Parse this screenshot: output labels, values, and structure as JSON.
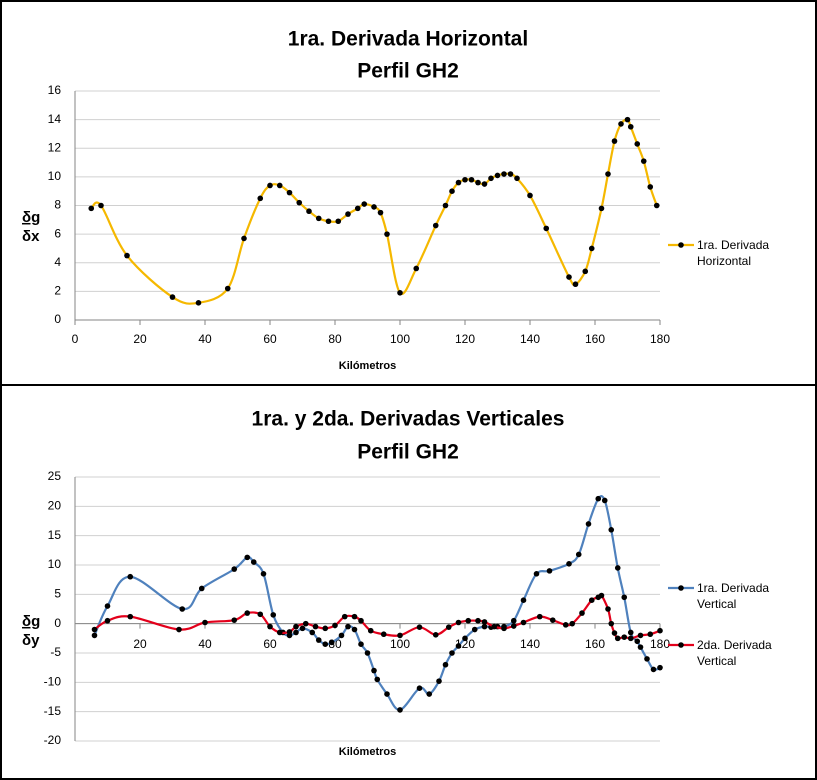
{
  "chart_data": [
    {
      "type": "line",
      "title": "1ra. Derivada Horizontal",
      "subtitle": "Perfil GH2",
      "xlabel": "Kilómetros",
      "ylabel_numerator": "δg",
      "ylabel_denominator": "δx",
      "xlim": [
        0,
        180
      ],
      "xticks": [
        0,
        20,
        40,
        60,
        80,
        100,
        120,
        140,
        160,
        180
      ],
      "ylim": [
        0,
        16
      ],
      "yticks": [
        0,
        2,
        4,
        6,
        8,
        10,
        12,
        14,
        16
      ],
      "grid": true,
      "legend": "right",
      "series": [
        {
          "name": "1ra. Derivada Horizontal",
          "color": "#f5b800",
          "x": [
            5,
            8,
            16,
            30,
            38,
            47,
            52,
            57,
            60,
            63,
            66,
            69,
            72,
            75,
            78,
            81,
            84,
            87,
            89,
            92,
            94,
            96,
            100,
            105,
            111,
            114,
            116,
            118,
            120,
            122,
            124,
            126,
            128,
            130,
            132,
            134,
            136,
            140,
            145,
            152,
            154,
            157,
            159,
            162,
            164,
            166,
            168,
            170,
            171,
            173,
            175,
            177,
            179
          ],
          "values": [
            7.8,
            8.0,
            4.5,
            1.6,
            1.2,
            2.2,
            5.7,
            8.5,
            9.4,
            9.4,
            8.9,
            8.2,
            7.6,
            7.1,
            6.9,
            6.9,
            7.4,
            7.8,
            8.1,
            7.9,
            7.5,
            6.0,
            1.9,
            3.6,
            6.6,
            8.0,
            9.0,
            9.6,
            9.8,
            9.8,
            9.6,
            9.5,
            9.9,
            10.1,
            10.2,
            10.2,
            9.9,
            8.7,
            6.4,
            3.0,
            2.5,
            3.4,
            5.0,
            7.8,
            10.2,
            12.5,
            13.7,
            14.0,
            13.5,
            12.3,
            11.1,
            9.3,
            8.0
          ]
        }
      ]
    },
    {
      "type": "line",
      "title": "1ra. y 2da. Derivadas Verticales",
      "subtitle": "Perfil GH2",
      "xlabel": "Kilómetros",
      "ylabel_numerator": "δg",
      "ylabel_denominator": "δy",
      "xlim": [
        0,
        180
      ],
      "xticks": [
        20,
        40,
        60,
        80,
        100,
        120,
        140,
        160,
        180
      ],
      "ylim": [
        -20,
        25
      ],
      "yticks": [
        -20,
        -15,
        -10,
        -5,
        0,
        5,
        10,
        15,
        20,
        25
      ],
      "grid": true,
      "legend": "right",
      "series": [
        {
          "name": "1ra. Derivada Vertical",
          "color": "#4f81bd",
          "x": [
            6,
            10,
            17,
            33,
            39,
            49,
            53,
            55,
            58,
            61,
            64,
            66,
            68,
            70,
            73,
            75,
            77,
            79,
            82,
            84,
            86,
            88,
            90,
            92,
            93,
            96,
            100,
            106,
            109,
            112,
            114,
            116,
            118,
            120,
            123,
            126,
            128,
            130,
            132,
            135,
            138,
            142,
            146,
            152,
            155,
            158,
            161,
            163,
            165,
            167,
            169,
            171,
            173,
            174,
            176,
            178,
            180
          ],
          "values": [
            -2,
            3,
            8,
            2.5,
            6,
            9.3,
            11.3,
            10.5,
            8.5,
            1.5,
            -1.5,
            -2,
            -1.5,
            -0.8,
            -1.5,
            -2.8,
            -3.5,
            -3.2,
            -2,
            -0.5,
            -1,
            -3.5,
            -5,
            -8,
            -9.5,
            -12,
            -14.7,
            -11,
            -12,
            -9.8,
            -7,
            -5,
            -3.8,
            -2.5,
            -1,
            -0.5,
            -0.6,
            -0.5,
            -0.5,
            0.5,
            4,
            8.5,
            9,
            10.2,
            11.8,
            17,
            21.3,
            21,
            16,
            9.5,
            4.5,
            -1.5,
            -3,
            -4,
            -6,
            -7.8,
            -7.5
          ]
        },
        {
          "name": "2da. Derivada Vertical",
          "color": "#e3001b",
          "x": [
            6,
            10,
            17,
            32,
            40,
            49,
            53,
            57,
            60,
            63,
            66,
            68,
            71,
            74,
            77,
            80,
            83,
            86,
            88,
            91,
            95,
            100,
            106,
            111,
            115,
            118,
            121,
            124,
            126,
            129,
            132,
            135,
            138,
            143,
            147,
            151,
            153,
            156,
            159,
            161,
            162,
            164,
            165,
            166,
            167,
            169,
            171,
            174,
            177,
            180
          ],
          "values": [
            -1,
            0.5,
            1.2,
            -1,
            0.2,
            0.6,
            1.8,
            1.6,
            -0.5,
            -1.5,
            -1.4,
            -0.5,
            0,
            -0.5,
            -0.8,
            -0.3,
            1.2,
            1.2,
            0.5,
            -1.2,
            -1.8,
            -2,
            -0.6,
            -1.9,
            -0.6,
            0.2,
            0.5,
            0.5,
            0.3,
            -0.5,
            -0.8,
            -0.4,
            0.2,
            1.2,
            0.6,
            -0.2,
            0,
            1.8,
            4,
            4.5,
            4.8,
            2.5,
            0,
            -1.6,
            -2.5,
            -2.3,
            -2.5,
            -2,
            -1.8,
            -1.2
          ]
        }
      ]
    }
  ]
}
